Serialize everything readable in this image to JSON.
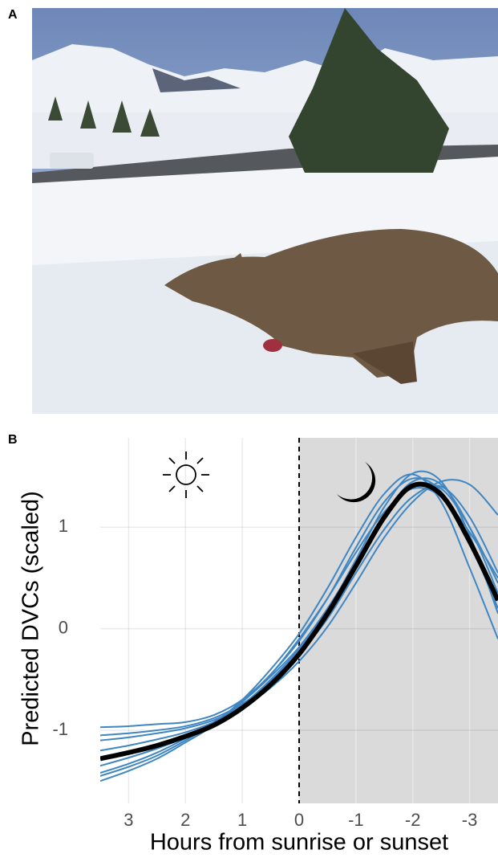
{
  "figure": {
    "panel_a_label": "A",
    "panel_b_label": "B"
  },
  "chart_data": {
    "type": "line",
    "x_label": "Hours from sunrise or sunset",
    "y_label": "Predicted DVCs (scaled)",
    "x": [
      3.5,
      3,
      2.5,
      2,
      1.5,
      1,
      0.5,
      0,
      -0.5,
      -1,
      -1.5,
      -2,
      -2.5,
      -3,
      -3.5
    ],
    "xlim": [
      3.5,
      -3.5
    ],
    "ylim": [
      -1.72,
      1.88
    ],
    "xticks": [
      3,
      2,
      1,
      0,
      -1,
      -2,
      -3
    ],
    "yticks": [
      1,
      0,
      -1
    ],
    "grid": true,
    "night_start": 0,
    "series": [
      {
        "color": "#3f86c2",
        "values": [
          -0.97,
          -0.96,
          -0.94,
          -0.92,
          -0.85,
          -0.7,
          -0.45,
          -0.1,
          0.3,
          0.75,
          1.15,
          1.38,
          1.3,
          0.95,
          0.5
        ]
      },
      {
        "color": "#3f86c2",
        "values": [
          -1.5,
          -1.4,
          -1.28,
          -1.12,
          -0.95,
          -0.72,
          -0.45,
          -0.12,
          0.3,
          0.8,
          1.25,
          1.48,
          1.35,
          0.85,
          0.2
        ]
      },
      {
        "color": "#3f86c2",
        "values": [
          -1.42,
          -1.33,
          -1.22,
          -1.08,
          -0.92,
          -0.72,
          -0.47,
          -0.18,
          0.2,
          0.65,
          1.12,
          1.45,
          1.42,
          1.0,
          0.35
        ]
      },
      {
        "color": "#3f86c2",
        "values": [
          -1.1,
          -1.07,
          -1.03,
          -0.98,
          -0.9,
          -0.76,
          -0.55,
          -0.25,
          0.1,
          0.55,
          0.98,
          1.3,
          1.4,
          1.1,
          0.55
        ]
      },
      {
        "color": "#3f86c2",
        "values": [
          -1.35,
          -1.27,
          -1.18,
          -1.07,
          -0.93,
          -0.75,
          -0.5,
          -0.2,
          0.18,
          0.68,
          1.2,
          1.53,
          1.45,
          0.92,
          0.15
        ]
      },
      {
        "color": "#3f86c2",
        "values": [
          -1.2,
          -1.15,
          -1.09,
          -1.02,
          -0.92,
          -0.78,
          -0.58,
          -0.32,
          0.02,
          0.45,
          0.9,
          1.25,
          1.45,
          1.42,
          1.12
        ]
      },
      {
        "color": "#3f86c2",
        "values": [
          -1.45,
          -1.36,
          -1.25,
          -1.1,
          -0.93,
          -0.7,
          -0.4,
          -0.05,
          0.4,
          0.9,
          1.33,
          1.52,
          1.25,
          0.6,
          -0.1
        ]
      },
      {
        "color": "#3f86c2",
        "values": [
          -1.05,
          -1.03,
          -1.0,
          -0.96,
          -0.88,
          -0.74,
          -0.52,
          -0.22,
          0.18,
          0.65,
          1.1,
          1.4,
          1.38,
          1.0,
          0.45
        ]
      },
      {
        "color": "#000000",
        "values": [
          -1.28,
          -1.22,
          -1.15,
          -1.06,
          -0.95,
          -0.78,
          -0.55,
          -0.25,
          0.15,
          0.62,
          1.1,
          1.41,
          1.32,
          0.86,
          0.28
        ]
      }
    ]
  }
}
